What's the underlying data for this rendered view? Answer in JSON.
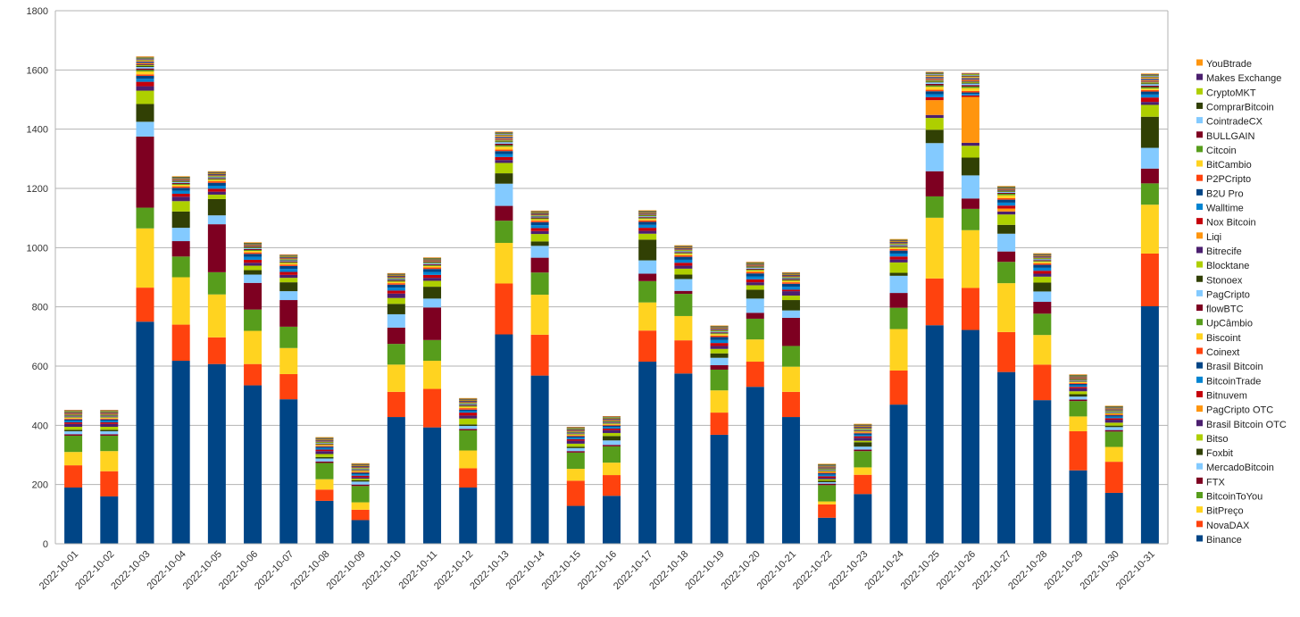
{
  "chart_data": {
    "type": "bar",
    "stacked": true,
    "title": "",
    "xlabel": "",
    "ylabel": "",
    "ylim": [
      0,
      1800
    ],
    "yticks": [
      0,
      200,
      400,
      600,
      800,
      1000,
      1200,
      1400,
      1600,
      1800
    ],
    "grid": true,
    "legend_position": "right",
    "categories": [
      "2022-10-01",
      "2022-10-02",
      "2022-10-03",
      "2022-10-04",
      "2022-10-05",
      "2022-10-06",
      "2022-10-07",
      "2022-10-08",
      "2022-10-09",
      "2022-10-10",
      "2022-10-11",
      "2022-10-12",
      "2022-10-13",
      "2022-10-14",
      "2022-10-15",
      "2022-10-16",
      "2022-10-17",
      "2022-10-18",
      "2022-10-19",
      "2022-10-20",
      "2022-10-21",
      "2022-10-22",
      "2022-10-23",
      "2022-10-24",
      "2022-10-25",
      "2022-10-26",
      "2022-10-27",
      "2022-10-28",
      "2022-10-29",
      "2022-10-30",
      "2022-10-31"
    ],
    "series": [
      {
        "name": "Binance",
        "color": "#004586",
        "values": [
          190,
          160,
          750,
          618,
          607,
          535,
          488,
          145,
          80,
          428,
          393,
          190,
          707,
          568,
          128,
          162,
          615,
          575,
          368,
          530,
          428,
          88,
          168,
          470,
          738,
          722,
          580,
          485,
          248,
          172,
          802
        ]
      },
      {
        "name": "NovaDAX",
        "color": "#ff420e",
        "values": [
          75,
          85,
          115,
          122,
          90,
          72,
          85,
          38,
          35,
          85,
          130,
          65,
          172,
          138,
          85,
          70,
          105,
          112,
          75,
          85,
          85,
          45,
          65,
          115,
          158,
          142,
          135,
          120,
          132,
          105,
          178
        ]
      },
      {
        "name": "BitPreço",
        "color": "#ffd320",
        "values": [
          45,
          68,
          200,
          160,
          145,
          112,
          88,
          35,
          25,
          92,
          95,
          60,
          137,
          135,
          40,
          42,
          95,
          82,
          75,
          75,
          85,
          10,
          25,
          140,
          205,
          195,
          165,
          100,
          50,
          50,
          165
        ]
      },
      {
        "name": "BitcoinToYou",
        "color": "#579d1c",
        "values": [
          55,
          52,
          70,
          70,
          75,
          72,
          72,
          55,
          55,
          70,
          70,
          68,
          75,
          75,
          55,
          55,
          72,
          75,
          70,
          70,
          70,
          55,
          55,
          72,
          72,
          72,
          72,
          72,
          52,
          52,
          72
        ]
      },
      {
        "name": "FTX",
        "color": "#7e0021",
        "values": [
          5,
          5,
          240,
          52,
          162,
          90,
          90,
          5,
          5,
          55,
          110,
          5,
          50,
          50,
          5,
          5,
          25,
          10,
          15,
          20,
          95,
          5,
          5,
          50,
          85,
          35,
          35,
          40,
          5,
          5,
          50
        ]
      },
      {
        "name": "MercadoBitcoin",
        "color": "#83caff",
        "values": [
          10,
          10,
          50,
          45,
          30,
          28,
          30,
          10,
          10,
          45,
          30,
          10,
          75,
          40,
          10,
          15,
          45,
          40,
          25,
          48,
          25,
          5,
          10,
          58,
          95,
          78,
          60,
          35,
          10,
          10,
          70
        ]
      },
      {
        "name": "Foxbit",
        "color": "#314004",
        "values": [
          5,
          5,
          60,
          55,
          55,
          15,
          30,
          5,
          5,
          35,
          40,
          5,
          35,
          15,
          5,
          15,
          70,
          15,
          15,
          30,
          35,
          5,
          15,
          10,
          45,
          60,
          30,
          30,
          8,
          5,
          105
        ]
      },
      {
        "name": "Bitso",
        "color": "#aecf00",
        "values": [
          10,
          10,
          45,
          35,
          15,
          15,
          15,
          10,
          5,
          20,
          20,
          20,
          35,
          25,
          10,
          10,
          20,
          20,
          15,
          15,
          15,
          5,
          5,
          35,
          40,
          40,
          35,
          20,
          10,
          10,
          40
        ]
      },
      {
        "name": "Brasil Bitcoin OTC",
        "color": "#4b1f6f",
        "values": [
          10,
          10,
          15,
          15,
          10,
          10,
          10,
          10,
          5,
          15,
          10,
          10,
          10,
          10,
          10,
          10,
          10,
          10,
          10,
          10,
          15,
          5,
          10,
          10,
          10,
          10,
          10,
          10,
          10,
          10,
          10
        ]
      },
      {
        "name": "PagCripto OTC",
        "color": "#ff950e",
        "values": [
          0,
          0,
          0,
          0,
          0,
          0,
          0,
          0,
          0,
          0,
          0,
          0,
          0,
          0,
          0,
          0,
          0,
          0,
          0,
          0,
          0,
          0,
          0,
          0,
          50,
          155,
          10,
          0,
          0,
          0,
          0
        ]
      },
      {
        "name": "Bitnuvem",
        "color": "#c5000b",
        "values": [
          5,
          5,
          15,
          10,
          10,
          10,
          10,
          5,
          5,
          10,
          10,
          10,
          10,
          10,
          5,
          5,
          10,
          10,
          10,
          10,
          5,
          5,
          5,
          10,
          10,
          5,
          10,
          10,
          5,
          5,
          15
        ]
      },
      {
        "name": "BitcoinTrade",
        "color": "#0084d1",
        "values": [
          5,
          5,
          10,
          10,
          10,
          10,
          10,
          5,
          5,
          10,
          10,
          5,
          10,
          10,
          5,
          5,
          10,
          10,
          10,
          10,
          10,
          5,
          5,
          10,
          10,
          5,
          10,
          10,
          5,
          5,
          10
        ]
      },
      {
        "name": "Brasil Bitcoin",
        "color": "#004586",
        "values": [
          5,
          5,
          10,
          10,
          10,
          10,
          10,
          5,
          5,
          10,
          10,
          5,
          10,
          10,
          5,
          5,
          10,
          10,
          10,
          10,
          10,
          5,
          5,
          10,
          10,
          5,
          10,
          10,
          5,
          5,
          10
        ]
      },
      {
        "name": "Coinext",
        "color": "#ff420e",
        "values": [
          3,
          3,
          5,
          5,
          5,
          5,
          5,
          3,
          3,
          5,
          5,
          5,
          5,
          5,
          3,
          3,
          5,
          5,
          5,
          5,
          5,
          3,
          3,
          5,
          5,
          5,
          5,
          5,
          3,
          3,
          5
        ]
      },
      {
        "name": "Biscoint",
        "color": "#ffd320",
        "values": [
          3,
          3,
          10,
          5,
          5,
          5,
          5,
          3,
          3,
          5,
          5,
          5,
          10,
          5,
          3,
          3,
          5,
          5,
          5,
          5,
          5,
          3,
          3,
          5,
          10,
          10,
          10,
          5,
          3,
          3,
          5
        ]
      },
      {
        "name": "UpCâmbio",
        "color": "#579d1c",
        "values": [
          2,
          2,
          5,
          3,
          3,
          3,
          3,
          2,
          2,
          3,
          3,
          3,
          5,
          3,
          2,
          2,
          3,
          3,
          3,
          3,
          3,
          2,
          2,
          3,
          5,
          5,
          5,
          3,
          2,
          2,
          5
        ]
      },
      {
        "name": "flowBTC",
        "color": "#7e0021",
        "values": [
          2,
          2,
          5,
          3,
          3,
          3,
          3,
          2,
          2,
          3,
          3,
          3,
          5,
          3,
          2,
          2,
          3,
          3,
          3,
          3,
          3,
          2,
          2,
          3,
          5,
          5,
          3,
          3,
          2,
          2,
          5
        ]
      },
      {
        "name": "PagCripto",
        "color": "#83caff",
        "values": [
          2,
          2,
          5,
          3,
          3,
          3,
          3,
          2,
          2,
          3,
          3,
          3,
          5,
          3,
          2,
          2,
          3,
          3,
          3,
          3,
          3,
          2,
          2,
          3,
          5,
          5,
          3,
          3,
          2,
          2,
          5
        ]
      },
      {
        "name": "Stonoex",
        "color": "#314004",
        "values": [
          2,
          2,
          3,
          2,
          2,
          2,
          2,
          2,
          2,
          2,
          2,
          2,
          3,
          2,
          2,
          2,
          2,
          2,
          2,
          2,
          2,
          2,
          2,
          2,
          3,
          3,
          2,
          2,
          2,
          2,
          3
        ]
      },
      {
        "name": "Blocktane",
        "color": "#aecf00",
        "values": [
          2,
          2,
          3,
          2,
          2,
          2,
          2,
          2,
          2,
          2,
          2,
          2,
          3,
          2,
          2,
          2,
          2,
          2,
          2,
          2,
          2,
          2,
          2,
          2,
          3,
          3,
          2,
          2,
          2,
          2,
          3
        ]
      },
      {
        "name": "Bitrecife",
        "color": "#4b1f6f",
        "values": [
          2,
          2,
          3,
          2,
          2,
          2,
          2,
          2,
          2,
          2,
          2,
          2,
          3,
          2,
          2,
          2,
          2,
          2,
          2,
          2,
          2,
          2,
          2,
          2,
          3,
          3,
          2,
          2,
          2,
          2,
          3
        ]
      },
      {
        "name": "Liqi",
        "color": "#ff950e",
        "values": [
          2,
          2,
          3,
          2,
          2,
          2,
          2,
          2,
          2,
          2,
          2,
          2,
          3,
          2,
          2,
          2,
          2,
          2,
          2,
          2,
          2,
          2,
          2,
          2,
          3,
          3,
          2,
          2,
          2,
          2,
          3
        ]
      },
      {
        "name": "Nox Bitcoin",
        "color": "#c5000b",
        "values": [
          1,
          1,
          2,
          1,
          1,
          1,
          1,
          1,
          1,
          1,
          1,
          1,
          2,
          1,
          1,
          1,
          1,
          1,
          1,
          1,
          1,
          1,
          1,
          1,
          2,
          2,
          1,
          1,
          1,
          1,
          2
        ]
      },
      {
        "name": "Walltime",
        "color": "#0084d1",
        "values": [
          1,
          1,
          2,
          1,
          1,
          1,
          1,
          1,
          1,
          1,
          1,
          1,
          2,
          1,
          1,
          1,
          1,
          1,
          1,
          1,
          1,
          1,
          1,
          1,
          2,
          2,
          1,
          1,
          1,
          1,
          2
        ]
      },
      {
        "name": "B2U Pro",
        "color": "#004586",
        "values": [
          1,
          1,
          2,
          1,
          1,
          1,
          1,
          1,
          1,
          1,
          1,
          1,
          2,
          1,
          1,
          1,
          1,
          1,
          1,
          1,
          1,
          1,
          1,
          1,
          2,
          2,
          1,
          1,
          1,
          1,
          2
        ]
      },
      {
        "name": "P2PCripto",
        "color": "#ff420e",
        "values": [
          1,
          1,
          2,
          1,
          1,
          1,
          1,
          1,
          1,
          1,
          1,
          1,
          2,
          1,
          1,
          1,
          1,
          1,
          1,
          1,
          1,
          1,
          1,
          1,
          2,
          2,
          1,
          1,
          1,
          1,
          2
        ]
      },
      {
        "name": "BitCambio",
        "color": "#ffd320",
        "values": [
          1,
          1,
          2,
          1,
          1,
          1,
          1,
          1,
          1,
          1,
          1,
          1,
          2,
          1,
          1,
          1,
          1,
          1,
          1,
          1,
          1,
          1,
          1,
          1,
          2,
          2,
          1,
          1,
          1,
          1,
          2
        ]
      },
      {
        "name": "Citcoin",
        "color": "#579d1c",
        "values": [
          1,
          1,
          2,
          1,
          1,
          1,
          1,
          1,
          1,
          1,
          1,
          1,
          2,
          1,
          1,
          1,
          1,
          1,
          1,
          1,
          1,
          1,
          1,
          1,
          2,
          2,
          1,
          1,
          1,
          1,
          2
        ]
      },
      {
        "name": "BULLGAIN",
        "color": "#7e0021",
        "values": [
          1,
          1,
          2,
          1,
          1,
          1,
          1,
          1,
          1,
          1,
          1,
          1,
          2,
          1,
          1,
          1,
          1,
          1,
          1,
          1,
          1,
          1,
          1,
          1,
          2,
          2,
          1,
          1,
          1,
          1,
          2
        ]
      },
      {
        "name": "CointradeCX",
        "color": "#83caff",
        "values": [
          1,
          1,
          2,
          1,
          1,
          1,
          1,
          1,
          1,
          1,
          1,
          1,
          2,
          1,
          1,
          1,
          1,
          1,
          1,
          1,
          1,
          1,
          1,
          1,
          2,
          2,
          1,
          1,
          1,
          1,
          2
        ]
      },
      {
        "name": "ComprarBitcoin",
        "color": "#314004",
        "values": [
          1,
          1,
          2,
          1,
          1,
          1,
          1,
          1,
          1,
          1,
          1,
          1,
          2,
          1,
          1,
          1,
          1,
          1,
          1,
          1,
          1,
          1,
          1,
          1,
          2,
          2,
          1,
          1,
          1,
          1,
          2
        ]
      },
      {
        "name": "CryptoMKT",
        "color": "#aecf00",
        "values": [
          1,
          1,
          2,
          1,
          1,
          1,
          1,
          1,
          1,
          1,
          1,
          1,
          2,
          1,
          1,
          1,
          1,
          1,
          1,
          1,
          1,
          1,
          1,
          1,
          2,
          2,
          1,
          1,
          1,
          1,
          2
        ]
      },
      {
        "name": "Makes Exchange",
        "color": "#4b1f6f",
        "values": [
          1,
          1,
          2,
          1,
          1,
          1,
          1,
          1,
          1,
          1,
          1,
          1,
          2,
          1,
          1,
          1,
          1,
          1,
          1,
          1,
          1,
          1,
          1,
          1,
          2,
          2,
          1,
          1,
          1,
          1,
          2
        ]
      },
      {
        "name": "YouBtrade",
        "color": "#ff950e",
        "values": [
          1,
          1,
          2,
          1,
          1,
          1,
          1,
          1,
          1,
          1,
          1,
          1,
          2,
          1,
          1,
          1,
          1,
          1,
          1,
          1,
          1,
          1,
          1,
          1,
          2,
          2,
          1,
          1,
          1,
          1,
          2
        ]
      }
    ]
  }
}
